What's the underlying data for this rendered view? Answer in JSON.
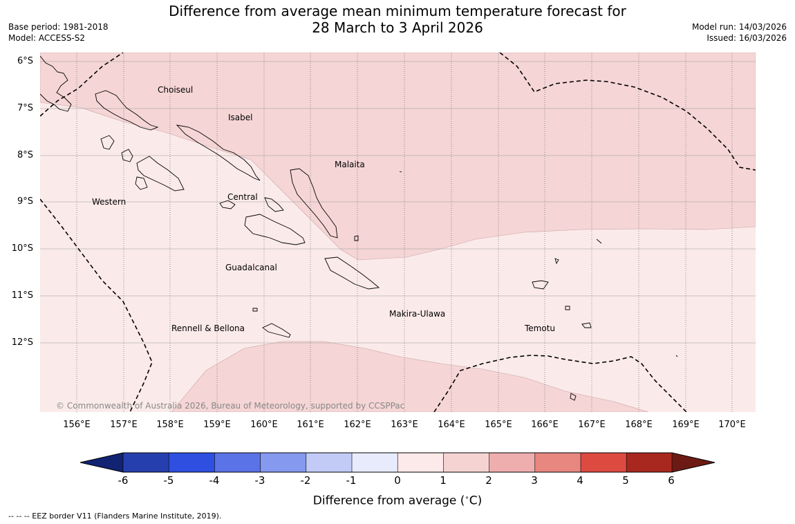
{
  "title": {
    "line1": "Difference from average mean minimum temperature forecast for",
    "line2": "28 March to 3 April 2026"
  },
  "meta": {
    "base_period": "Base period: 1981-2018",
    "model": "Model: ACCESS-S2",
    "model_run": "Model run: 14/03/2026",
    "issued": "Issued: 16/03/2026"
  },
  "map": {
    "lat_labels": [
      "6°S",
      "7°S",
      "8°S",
      "9°S",
      "10°S",
      "11°S",
      "12°S"
    ],
    "lon_labels": [
      "156°E",
      "157°E",
      "158°E",
      "159°E",
      "160°E",
      "161°E",
      "162°E",
      "163°E",
      "164°E",
      "165°E",
      "166°E",
      "167°E",
      "168°E",
      "169°E",
      "170°E"
    ],
    "provinces": [
      "Choiseul",
      "Isabel",
      "Malaita",
      "Western",
      "Central",
      "Guadalcanal",
      "Makira-Ulawa",
      "Temotu",
      "Rennell & Bellona"
    ],
    "copyright": "© Commonwealth of Australia 2026, Bureau of Meteorology, supported by CCSPPac",
    "colors": {
      "anomaly_1_2": "#f5d5d5",
      "anomaly_0_1": "#fbeaea",
      "gridline": "#888888",
      "eez_line": "#000000"
    }
  },
  "colorbar": {
    "ticks": [
      "-6",
      "-5",
      "-4",
      "-3",
      "-2",
      "-1",
      "0",
      "1",
      "2",
      "3",
      "4",
      "5",
      "6"
    ],
    "colors": [
      "#122373",
      "#263fae",
      "#2f4fe0",
      "#5a73e6",
      "#8599ee",
      "#c2caf6",
      "#e8ebfc",
      "#fce9e9",
      "#f6d3d3",
      "#efaeae",
      "#e78780",
      "#dc4a40",
      "#a8281f",
      "#6e1a14"
    ],
    "label": "Difference from average (",
    "unit_symbol": "C",
    "label_end": ")"
  },
  "footnote": "--  --  -- EEZ border V11 (Flanders Marine Institute, 2019)."
}
